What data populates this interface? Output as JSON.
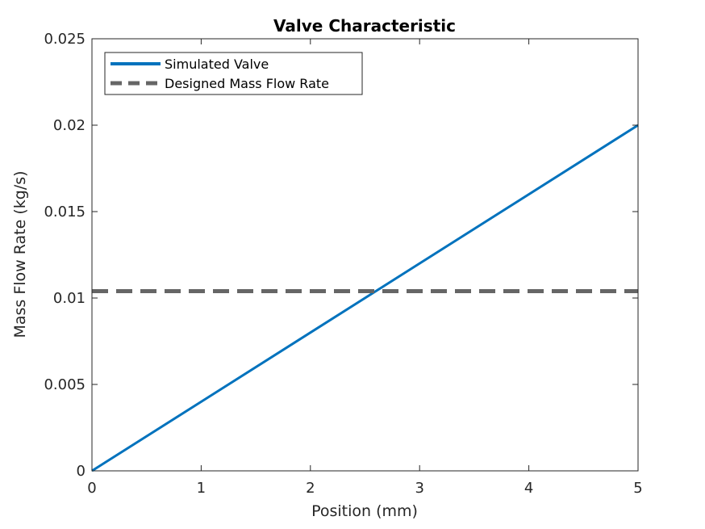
{
  "chart_data": {
    "type": "line",
    "title": "Valve Characteristic",
    "xlabel": "Position (mm)",
    "ylabel": "Mass Flow Rate (kg/s)",
    "xlim": [
      0,
      5
    ],
    "ylim": [
      0,
      0.025
    ],
    "x_ticks": [
      0,
      1,
      2,
      3,
      4,
      5
    ],
    "x_tick_labels": [
      "0",
      "1",
      "2",
      "3",
      "4",
      "5"
    ],
    "y_ticks": [
      0,
      0.005,
      0.01,
      0.015,
      0.02,
      0.025
    ],
    "y_tick_labels": [
      "0",
      "0.005",
      "0.01",
      "0.015",
      "0.02",
      "0.025"
    ],
    "grid": false,
    "legend_position": "top-left",
    "series": [
      {
        "name": "Simulated Valve",
        "style": "solid",
        "color": "#0072BD",
        "x": [
          0,
          5
        ],
        "y": [
          0,
          0.02
        ]
      },
      {
        "name": "Designed Mass Flow Rate",
        "style": "dashed",
        "color": "#666666",
        "x": [
          0,
          5
        ],
        "y": [
          0.0104,
          0.0104
        ]
      }
    ]
  }
}
